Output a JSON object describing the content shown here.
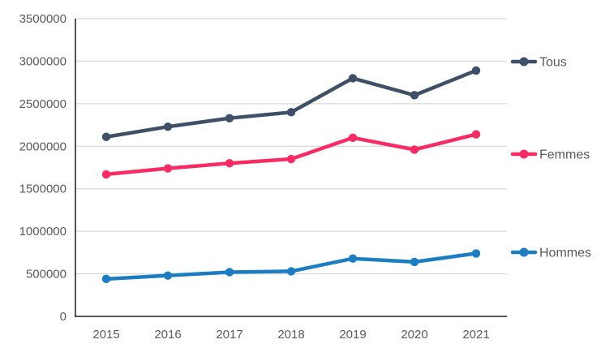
{
  "chart_data": {
    "type": "line",
    "x": [
      "2015",
      "2016",
      "2017",
      "2018",
      "2019",
      "2020",
      "2021"
    ],
    "series": [
      {
        "name": "Tous",
        "color": "#3E5067",
        "values": [
          2110000,
          2230000,
          2330000,
          2400000,
          2800000,
          2600000,
          2890000
        ]
      },
      {
        "name": "Femmes",
        "color": "#F92B64",
        "values": [
          1670000,
          1740000,
          1800000,
          1850000,
          2100000,
          1960000,
          2140000
        ]
      },
      {
        "name": "Hommes",
        "color": "#1B7EC3",
        "values": [
          440000,
          480000,
          520000,
          530000,
          680000,
          640000,
          740000
        ]
      }
    ],
    "title": "",
    "xlabel": "",
    "ylabel": "",
    "ylim": [
      0,
      3500000
    ],
    "ytick_step": 500000,
    "ytick_labels": [
      "0",
      "500000",
      "1000000",
      "1500000",
      "2000000",
      "2500000",
      "3000000",
      "3500000"
    ],
    "grid": true,
    "legend_position": "right-of-plot",
    "colors": {
      "axis_line": "#404040",
      "grid_line": "#D9D9D9",
      "tick_label": "#595959",
      "legend_text": "#595959"
    }
  }
}
